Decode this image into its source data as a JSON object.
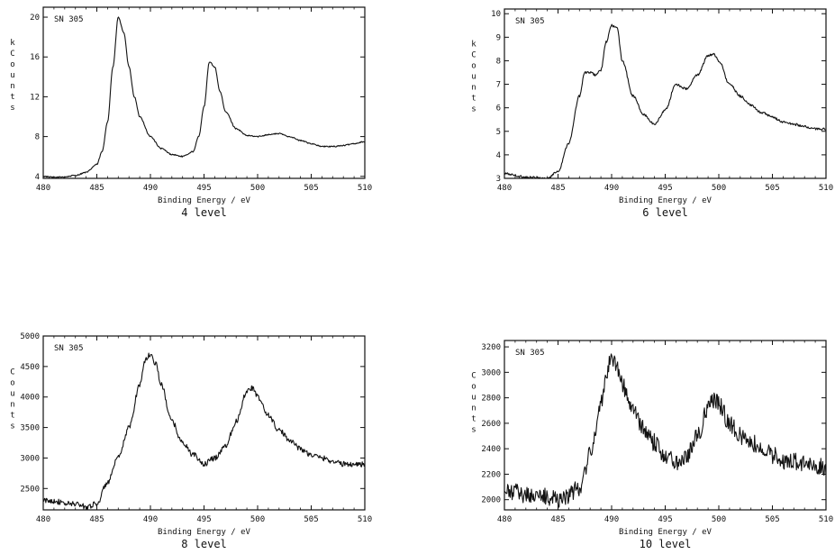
{
  "chart_data": [
    {
      "type": "line",
      "sample_label": "SN 305",
      "ylabel_lines": [
        "k",
        "C",
        "o",
        "u",
        "n",
        "t",
        "s"
      ],
      "xlabel": "Binding Energy / eV",
      "caption": "4 level",
      "xlim": [
        480,
        510
      ],
      "ylim": [
        3.8,
        21
      ],
      "xticks": [
        480,
        485,
        490,
        495,
        500,
        505,
        510
      ],
      "yticks": [
        4,
        8,
        12,
        16,
        20
      ],
      "noise": 0.06,
      "series": [
        {
          "x": [
            480,
            481,
            482,
            483,
            484,
            485,
            485.5,
            486,
            486.5,
            487,
            487.5,
            488,
            488.5,
            489,
            490,
            491,
            492,
            493,
            494,
            494.5,
            495,
            495.5,
            496,
            496.5,
            497,
            498,
            499,
            500,
            501,
            502,
            503,
            504,
            505,
            506,
            507,
            508,
            509,
            510
          ],
          "y": [
            4.0,
            3.9,
            3.95,
            4.1,
            4.4,
            5.2,
            6.5,
            9.5,
            15,
            20.0,
            18.5,
            15,
            12,
            10,
            8,
            6.8,
            6.2,
            6.0,
            6.5,
            8.0,
            11,
            15.5,
            15.0,
            12.5,
            10.5,
            8.8,
            8.1,
            8.0,
            8.2,
            8.3,
            8.0,
            7.6,
            7.3,
            7.0,
            7.0,
            7.1,
            7.3,
            7.5
          ]
        }
      ]
    },
    {
      "type": "line",
      "sample_label": "SN 305",
      "ylabel_lines": [
        "k",
        "C",
        "o",
        "u",
        "n",
        "t",
        "s"
      ],
      "xlabel": "Binding Energy / eV",
      "caption": "6 level",
      "xlim": [
        480,
        510
      ],
      "ylim": [
        3,
        10.2
      ],
      "xticks": [
        480,
        485,
        490,
        495,
        500,
        505,
        510
      ],
      "xtick_labels": [
        "480",
        "485",
        "490",
        "495",
        "500",
        "505",
        "510"
      ],
      "yticks": [
        3,
        4,
        5,
        6,
        7,
        8,
        9,
        10
      ],
      "noise": 0.05,
      "series": [
        {
          "x": [
            480,
            482,
            484,
            485,
            486,
            487,
            487.5,
            488,
            488.5,
            489,
            489.5,
            490,
            490.5,
            491,
            492,
            493,
            494,
            495,
            496,
            497,
            498,
            499,
            499.5,
            500,
            501,
            502,
            503,
            504,
            505,
            506,
            507,
            508,
            509,
            510
          ],
          "y": [
            3.2,
            3.05,
            3.0,
            3.3,
            4.5,
            6.5,
            7.5,
            7.5,
            7.4,
            7.6,
            8.8,
            9.5,
            9.4,
            8.0,
            6.5,
            5.7,
            5.3,
            5.9,
            7.0,
            6.8,
            7.4,
            8.2,
            8.3,
            8.0,
            7.0,
            6.5,
            6.1,
            5.8,
            5.6,
            5.4,
            5.3,
            5.2,
            5.1,
            5.1
          ]
        }
      ]
    },
    {
      "type": "line",
      "sample_label": "SN 305",
      "ylabel_lines": [
        "C",
        "o",
        "u",
        "n",
        "t",
        "s"
      ],
      "xlabel": "Binding Energy / eV",
      "caption": "8 level",
      "xlim": [
        480,
        510
      ],
      "ylim": [
        2150,
        5000
      ],
      "xticks": [
        480,
        485,
        490,
        495,
        500,
        505,
        510
      ],
      "yticks": [
        2500,
        3000,
        3500,
        4000,
        4500,
        5000
      ],
      "noise": 45,
      "series": [
        {
          "x": [
            480,
            481,
            482,
            483,
            484,
            485,
            486,
            487,
            488,
            489,
            489.5,
            490,
            490.5,
            491,
            492,
            493,
            494,
            495,
            496,
            497,
            498,
            499,
            499.5,
            500,
            501,
            502,
            503,
            504,
            505,
            506,
            507,
            508,
            509,
            510
          ],
          "y": [
            2300,
            2300,
            2250,
            2250,
            2200,
            2250,
            2600,
            3000,
            3500,
            4200,
            4600,
            4700,
            4550,
            4200,
            3600,
            3250,
            3050,
            2900,
            3000,
            3200,
            3600,
            4100,
            4150,
            4000,
            3700,
            3450,
            3300,
            3150,
            3050,
            3000,
            2950,
            2900,
            2900,
            2900
          ]
        }
      ]
    },
    {
      "type": "line",
      "sample_label": "SN 305",
      "ylabel_lines": [
        "C",
        "o",
        "u",
        "n",
        "t",
        "s"
      ],
      "xlabel": "Binding Energy / eV",
      "caption": "10 level",
      "xlim": [
        480,
        510
      ],
      "ylim": [
        1920,
        3250
      ],
      "xticks": [
        480,
        485,
        490,
        495,
        500,
        505,
        510
      ],
      "yticks": [
        2000,
        2200,
        2400,
        2600,
        2800,
        3000,
        3200
      ],
      "noise": 70,
      "series": [
        {
          "x": [
            480,
            481,
            482,
            483,
            484,
            485,
            486,
            487,
            488,
            489,
            489.5,
            490,
            490.5,
            491,
            492,
            493,
            494,
            495,
            496,
            497,
            498,
            499,
            499.5,
            500,
            501,
            502,
            503,
            504,
            505,
            506,
            507,
            508,
            509,
            510
          ],
          "y": [
            2050,
            2060,
            2040,
            2030,
            2020,
            2010,
            2030,
            2100,
            2350,
            2750,
            3000,
            3130,
            3050,
            2900,
            2700,
            2550,
            2450,
            2350,
            2300,
            2350,
            2500,
            2720,
            2780,
            2750,
            2600,
            2500,
            2450,
            2400,
            2350,
            2300,
            2300,
            2280,
            2270,
            2250
          ]
        }
      ]
    }
  ]
}
